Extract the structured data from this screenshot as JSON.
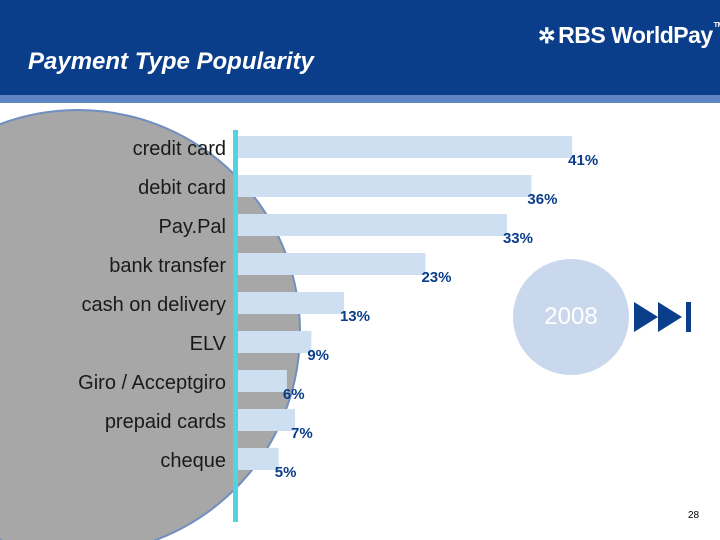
{
  "header": {
    "title": "Payment Type Popularity",
    "logo_text": "RBS WorldPay",
    "logo_mark": "✲",
    "logo_tm": "TM"
  },
  "colors": {
    "header_bg": "#0a3d8a",
    "stripe": "#5f86c2",
    "bar": "#cfdff2",
    "axis": "#4fd4e0",
    "badge": "#c9d8ec",
    "icon": "#0a3d8a"
  },
  "chart_data": {
    "type": "bar",
    "orientation": "horizontal",
    "categories": [
      "credit card",
      "debit card",
      "Pay.Pal",
      "bank transfer",
      "cash on delivery",
      "ELV",
      "Giro / Acceptgiro",
      "prepaid cards",
      "cheque"
    ],
    "values": [
      41,
      36,
      33,
      23,
      13,
      9,
      6,
      7,
      5
    ],
    "labels": [
      "41%",
      "36%",
      "33%",
      "23%",
      "13%",
      "9%",
      "6%",
      "7%",
      "5%"
    ],
    "unit": "%",
    "title": "",
    "xlabel": "",
    "ylabel": ""
  },
  "badge": {
    "year": "2008"
  },
  "nav": {
    "icon": "skip-forward-icon"
  },
  "footer": {
    "page_number": "28"
  }
}
